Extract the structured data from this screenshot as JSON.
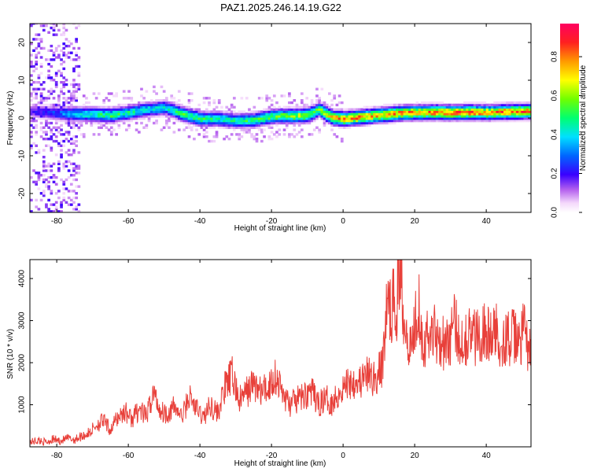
{
  "figure_title": "PAZ1.2025.246.14.19.G22",
  "chart_data": [
    {
      "type": "heatmap",
      "xlabel": "Height of straight line (km)",
      "ylabel": "Frequency (Hz)",
      "xlim": [
        -87.5,
        52.5
      ],
      "ylim": [
        -25,
        25
      ],
      "xticks": [
        -80,
        -60,
        -40,
        -20,
        0,
        20,
        40
      ],
      "yticks": [
        -20,
        -10,
        0,
        10,
        20
      ],
      "colorbar": {
        "label": "Normalized spectral amplitude",
        "range": [
          0,
          0.97
        ],
        "ticks": [
          0.0,
          0.2,
          0.4,
          0.6,
          0.8
        ],
        "tick_labels": [
          "0.0",
          "0.2",
          "0.4",
          "0.6",
          "0.8"
        ],
        "colormap": "rainbow (white-magenta-blue-cyan-green-yellow-orange-red-pink)"
      },
      "ridge": {
        "x": [
          -87,
          -80,
          -75,
          -70,
          -65,
          -60,
          -55,
          -50,
          -47,
          -45,
          -40,
          -35,
          -30,
          -25,
          -20,
          -15,
          -10,
          -7,
          -5,
          -3,
          0,
          5,
          10,
          15,
          20,
          25,
          30,
          35,
          40,
          45,
          52
        ],
        "y": [
          1.5,
          1.0,
          0.8,
          0.7,
          0.5,
          1.2,
          2.0,
          2.5,
          1.5,
          0.8,
          -0.5,
          -0.5,
          -1.0,
          -0.8,
          0.2,
          0.3,
          0.5,
          2.0,
          0.8,
          -0.2,
          -0.5,
          0.0,
          0.5,
          1.0,
          1.2,
          1.3,
          1.2,
          1.3,
          1.2,
          1.4,
          1.5
        ],
        "amplitude": [
          0.2,
          0.3,
          0.45,
          0.5,
          0.55,
          0.5,
          0.45,
          0.45,
          0.5,
          0.6,
          0.55,
          0.5,
          0.5,
          0.55,
          0.6,
          0.65,
          0.7,
          0.6,
          0.75,
          0.8,
          0.85,
          0.85,
          0.8,
          0.85,
          0.85,
          0.9,
          0.88,
          0.9,
          0.85,
          0.9,
          0.88
        ]
      }
    },
    {
      "type": "line",
      "xlabel": "Height of straight line (km)",
      "ylabel": "SNR (10 * v/v)",
      "xlim": [
        -87.5,
        52.5
      ],
      "ylim": [
        0,
        4450
      ],
      "xticks": [
        -80,
        -60,
        -40,
        -20,
        0,
        20,
        40
      ],
      "yticks": [
        1000,
        2000,
        3000,
        4000
      ],
      "color": "#e8403a",
      "series": [
        {
          "name": "",
          "x": [
            -87,
            -85,
            -83,
            -81,
            -79,
            -77,
            -75,
            -73,
            -71,
            -69,
            -67,
            -65,
            -63,
            -61,
            -59,
            -57,
            -55,
            -53,
            -51,
            -49,
            -47,
            -45,
            -43,
            -41,
            -39,
            -37,
            -35,
            -33,
            -31,
            -29,
            -27,
            -25,
            -23,
            -21,
            -19,
            -17,
            -15,
            -13,
            -11,
            -9,
            -7,
            -5,
            -3,
            -1,
            1,
            3,
            5,
            7,
            9,
            11,
            12,
            13,
            15,
            16,
            17,
            19,
            21,
            22,
            23,
            25,
            27,
            29,
            31,
            33,
            35,
            37,
            39,
            41,
            43,
            45,
            47,
            49,
            51,
            52
          ],
          "y": [
            120,
            150,
            110,
            180,
            140,
            200,
            170,
            260,
            320,
            520,
            620,
            400,
            700,
            850,
            650,
            900,
            700,
            1300,
            850,
            800,
            950,
            700,
            1200,
            900,
            700,
            1000,
            800,
            1400,
            1700,
            1100,
            1300,
            1500,
            1300,
            1400,
            1700,
            1300,
            1000,
            1100,
            1200,
            1350,
            1000,
            1150,
            1050,
            1300,
            1500,
            1600,
            1550,
            1700,
            1600,
            1900,
            3200,
            3300,
            3400,
            4400,
            3200,
            2300,
            3600,
            2700,
            2500,
            2800,
            2600,
            2400,
            2900,
            2500,
            2700,
            2600,
            2800,
            2600,
            2700,
            2500,
            2600,
            2500,
            2800,
            2200
          ]
        }
      ]
    }
  ]
}
